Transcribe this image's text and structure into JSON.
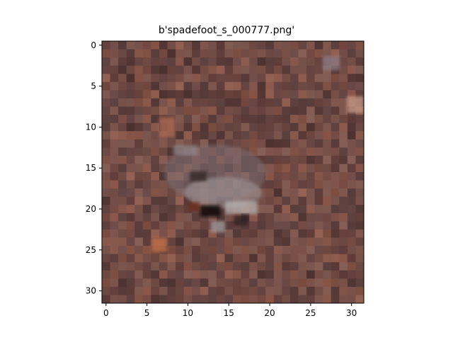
{
  "figure": {
    "title": "b'spadefoot_s_000777.png'"
  },
  "image": {
    "rows": 32,
    "cols": 32,
    "subject": "spadefoot toad on reddish-brown ground (low-resolution pixel image)",
    "palette": {
      "background_brown": "#6f4a45",
      "dark_brown": "#4b3433",
      "rust": "#9c5a44",
      "light_gray": "#b7b2b1",
      "mid_gray": "#7d7476",
      "near_black": "#1c1412"
    }
  },
  "axes": {
    "x_ticks": [
      "0",
      "5",
      "10",
      "15",
      "20",
      "25",
      "30"
    ],
    "y_ticks": [
      "0",
      "5",
      "10",
      "15",
      "20",
      "25",
      "30"
    ],
    "xlim": [
      -0.5,
      31.5
    ],
    "ylim": [
      31.5,
      -0.5
    ]
  }
}
